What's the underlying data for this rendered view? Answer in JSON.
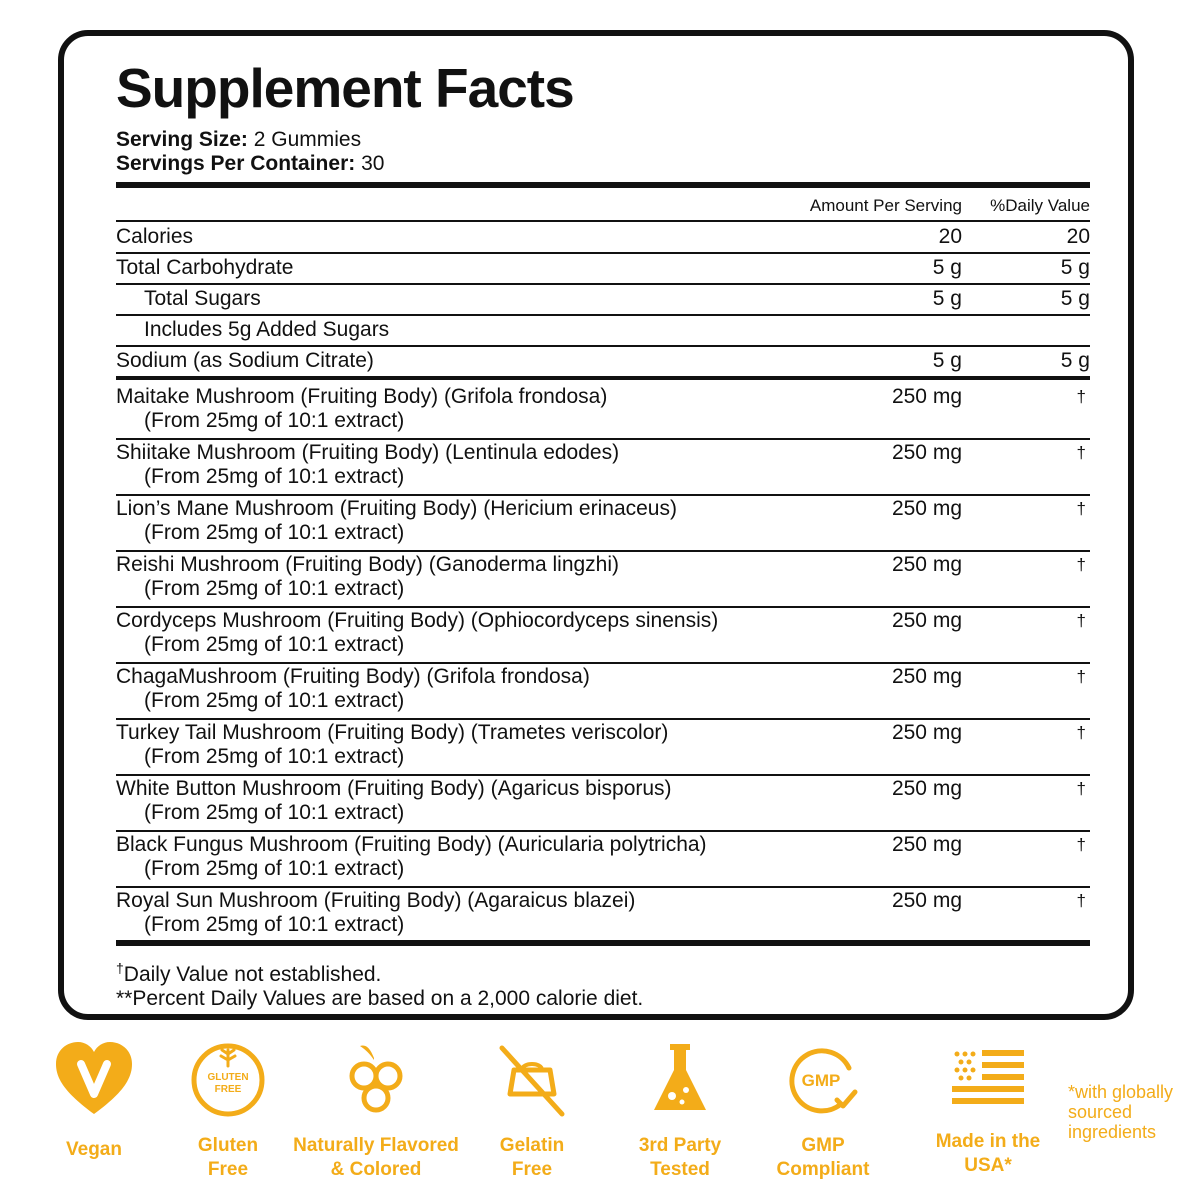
{
  "panel": {
    "title": "Supplement Facts",
    "serving_size_label": "Serving Size:",
    "serving_size_value": " 2 Gummies",
    "servings_label": "Servings Per Container:",
    "servings_value": " 30",
    "col_amount": "Amount Per Serving",
    "col_dv": "%Daily Value",
    "nutrients": [
      {
        "name": "Calories",
        "amount": "20",
        "dv": "20"
      },
      {
        "name": "Total Carbohydrate",
        "amount": "5 g",
        "dv": "5 g"
      },
      {
        "name": "Total Sugars",
        "amount": "5 g",
        "dv": "5 g"
      },
      {
        "name": "Includes 5g Added Sugars",
        "amount": "",
        "dv": ""
      },
      {
        "name": "Sodium (as Sodium Citrate)",
        "amount": "5 g",
        "dv": "5 g"
      }
    ],
    "ingredients": [
      {
        "name": "Maitake Mushroom (Fruiting Body) (Grifola frondosa)",
        "sub": "(From 25mg of 10:1 extract)",
        "amount": "250 mg",
        "dv": "†"
      },
      {
        "name": "Shiitake Mushroom (Fruiting Body) (Lentinula edodes)",
        "sub": "(From 25mg of 10:1 extract)",
        "amount": "250 mg",
        "dv": "†"
      },
      {
        "name": "Lion’s Mane Mushroom (Fruiting Body) (Hericium erinaceus)",
        "sub": "(From 25mg of 10:1 extract)",
        "amount": "250 mg",
        "dv": "†"
      },
      {
        "name": "Reishi Mushroom (Fruiting Body) (Ganoderma lingzhi)",
        "sub": "(From 25mg of 10:1 extract)",
        "amount": "250 mg",
        "dv": "†"
      },
      {
        "name": "Cordyceps Mushroom (Fruiting Body) (Ophiocordyceps sinensis)",
        "sub": "(From 25mg of 10:1 extract)",
        "amount": "250 mg",
        "dv": "†"
      },
      {
        "name": "ChagaMushroom (Fruiting Body) (Grifola frondosa)",
        "sub": "(From 25mg of 10:1 extract)",
        "amount": "250 mg",
        "dv": "†"
      },
      {
        "name": "Turkey Tail Mushroom (Fruiting Body) (Trametes veriscolor)",
        "sub": "(From 25mg of 10:1 extract)",
        "amount": "250 mg",
        "dv": "†"
      },
      {
        "name": "White Button Mushroom (Fruiting Body) (Agaricus bisporus)",
        "sub": "(From 25mg of 10:1 extract)",
        "amount": "250 mg",
        "dv": "†"
      },
      {
        "name": "Black Fungus Mushroom (Fruiting Body) (Auricularia polytricha)",
        "sub": "(From 25mg of 10:1 extract)",
        "amount": "250 mg",
        "dv": "†"
      },
      {
        "name": "Royal Sun Mushroom (Fruiting Body) (Agaraicus blazei)",
        "sub": "(From 25mg of 10:1 extract)",
        "amount": "250 mg",
        "dv": "†"
      }
    ],
    "footnote_dagger": "†",
    "footnote_1": "Daily Value not established.",
    "footnote_2": "**Percent Daily Values are based on a 2,000 calorie diet."
  },
  "badges": [
    {
      "icon": "heart-v-icon",
      "label": "Vegan"
    },
    {
      "icon": "gluten-free-icon",
      "label": "Gluten\nFree",
      "icon_text_1": "GLUTEN",
      "icon_text_2": "FREE"
    },
    {
      "icon": "fruit-icon",
      "label": "Naturally Flavored\n& Colored"
    },
    {
      "icon": "no-gelatin-icon",
      "label": "Gelatin\nFree"
    },
    {
      "icon": "flask-icon",
      "label": "3rd Party\nTested"
    },
    {
      "icon": "gmp-icon",
      "label": "GMP\nCompliant",
      "icon_text": "GMP"
    },
    {
      "icon": "us-flag-icon",
      "label": "Made in the\nUSA*"
    }
  ],
  "side_note": "*with globally sourced ingredients",
  "colors": {
    "accent": "#f3ac19",
    "ink": "#111111"
  }
}
